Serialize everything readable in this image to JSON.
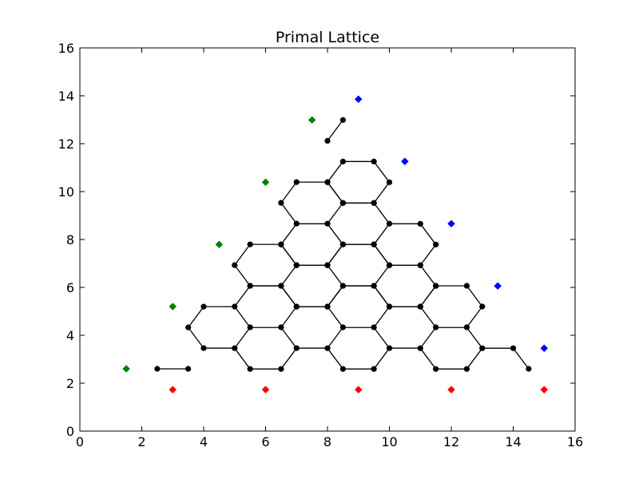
{
  "chart_data": {
    "type": "scatter",
    "title": "Primal Lattice",
    "xlabel": "",
    "ylabel": "",
    "xlim": [
      0,
      16
    ],
    "ylim": [
      0,
      16
    ],
    "xticks": [
      0,
      2,
      4,
      6,
      8,
      10,
      12,
      14,
      16
    ],
    "yticks": [
      0,
      2,
      4,
      6,
      8,
      10,
      12,
      14,
      16
    ],
    "grid": false,
    "lattice": {
      "color": "#000000",
      "tail_segments": [
        [
          [
            2.5,
            2.6
          ],
          [
            3.5,
            2.6
          ]
        ],
        [
          [
            13,
            3.46
          ],
          [
            14,
            3.46
          ]
        ],
        [
          [
            14,
            3.46
          ],
          [
            14.5,
            2.6
          ]
        ],
        [
          [
            8,
            12.12
          ],
          [
            8.5,
            12.99
          ]
        ]
      ],
      "hexagons": [
        {
          "cx": 4.5,
          "cy": 4.33
        },
        {
          "cx": 6.0,
          "cy": 3.46
        },
        {
          "cx": 7.5,
          "cy": 4.33
        },
        {
          "cx": 9.0,
          "cy": 3.46
        },
        {
          "cx": 10.5,
          "cy": 4.33
        },
        {
          "cx": 12.0,
          "cy": 3.46
        },
        {
          "cx": 6.0,
          "cy": 5.2
        },
        {
          "cx": 7.5,
          "cy": 6.06
        },
        {
          "cx": 9.0,
          "cy": 5.2
        },
        {
          "cx": 10.5,
          "cy": 6.06
        },
        {
          "cx": 12.0,
          "cy": 5.2
        },
        {
          "cx": 6.0,
          "cy": 6.93
        },
        {
          "cx": 7.5,
          "cy": 7.79
        },
        {
          "cx": 9.0,
          "cy": 6.93
        },
        {
          "cx": 10.5,
          "cy": 7.79
        },
        {
          "cx": 7.5,
          "cy": 9.53
        },
        {
          "cx": 9.0,
          "cy": 8.66
        },
        {
          "cx": 9.0,
          "cy": 10.39
        }
      ]
    },
    "series": [
      {
        "color": "#008000",
        "marker": "diamond",
        "points": [
          [
            1.5,
            2.6
          ],
          [
            3,
            5.2
          ],
          [
            4.5,
            7.79
          ],
          [
            6,
            10.39
          ],
          [
            7.5,
            12.99
          ]
        ]
      },
      {
        "color": "#0000ff",
        "marker": "diamond",
        "points": [
          [
            9,
            13.86
          ],
          [
            10.5,
            11.26
          ],
          [
            12,
            8.66
          ],
          [
            13.5,
            6.06
          ],
          [
            15,
            3.46
          ]
        ]
      },
      {
        "color": "#ff0000",
        "marker": "diamond",
        "points": [
          [
            3,
            1.73
          ],
          [
            6,
            1.73
          ],
          [
            9,
            1.73
          ],
          [
            12,
            1.73
          ],
          [
            15,
            1.73
          ]
        ]
      }
    ]
  }
}
